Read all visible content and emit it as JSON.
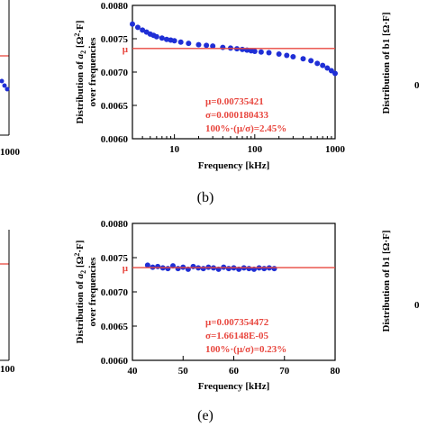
{
  "colors": {
    "series": "#1f2fd6",
    "mean_line": "#e8473f",
    "stat_text": "#e8473f",
    "axis": "#000000"
  },
  "panels": {
    "b": {
      "label": "(b)"
    },
    "e": {
      "label": "(e)"
    }
  },
  "left_fragments": {
    "top_tick": "1000",
    "bottom_tick": "100"
  },
  "right_fragments": {
    "top_ylabel": "Distribution of b1 [Ω·F]",
    "bottom_ylabel": "Distribution of b1 [Ω·F]",
    "top_tick": "0",
    "bottom_tick": "0"
  },
  "chart_data": [
    {
      "id": "b",
      "type": "scatter",
      "title": "",
      "xlabel": "Frequency [kHz]",
      "ylabel_prefix": "Distribution of ",
      "ylabel_var": "a",
      "ylabel_sub": "2",
      "ylabel_unit_open": " [Ω",
      "ylabel_unit_sup": "2",
      "ylabel_unit_close": "·F]",
      "ylabel_line2": "over frequencies",
      "xscale": "log",
      "xlim": [
        3,
        1000
      ],
      "ylim": [
        0.006,
        0.008
      ],
      "xticks": [
        10,
        100,
        1000
      ],
      "xtick_labels": [
        "10",
        "100",
        "1000"
      ],
      "yticks": [
        0.006,
        0.0065,
        0.007,
        0.0075,
        0.008
      ],
      "ytick_labels": [
        "0.0060",
        "0.0065",
        "0.0070",
        "0.0075",
        "0.0080"
      ],
      "mean": 0.00735421,
      "mean_label": "μ",
      "stats": [
        "μ=0.00735421",
        "σ=0.000180433",
        "100%·(μ/σ)=2.45%"
      ],
      "series": [
        {
          "x": [
            3,
            3.5,
            4,
            4.5,
            5,
            5.5,
            6,
            7,
            8,
            9,
            10,
            12,
            15,
            20,
            25,
            30,
            40,
            50,
            60,
            70,
            80,
            90,
            100,
            120,
            150,
            200,
            250,
            300,
            400,
            500,
            600,
            700,
            800,
            900,
            1000
          ],
          "y": [
            0.00772,
            0.00767,
            0.00763,
            0.0076,
            0.00757,
            0.00755,
            0.00753,
            0.00751,
            0.00749,
            0.00748,
            0.00747,
            0.00745,
            0.00743,
            0.00741,
            0.0074,
            0.00739,
            0.00737,
            0.00736,
            0.00735,
            0.00734,
            0.00733,
            0.00732,
            0.00731,
            0.0073,
            0.00729,
            0.00727,
            0.00725,
            0.00723,
            0.0072,
            0.00717,
            0.00713,
            0.0071,
            0.00706,
            0.00702,
            0.00698
          ]
        }
      ],
      "legend": "none",
      "grid": false
    },
    {
      "id": "e",
      "type": "scatter",
      "title": "",
      "xlabel": "Frequency [kHz]",
      "ylabel_prefix": "Distribution of ",
      "ylabel_var": "a",
      "ylabel_sub": "2",
      "ylabel_unit_open": " [Ω",
      "ylabel_unit_sup": "2",
      "ylabel_unit_close": "·F]",
      "ylabel_line2": "over frequencies",
      "xscale": "linear",
      "xlim": [
        40,
        80
      ],
      "ylim": [
        0.006,
        0.008
      ],
      "xticks": [
        40,
        50,
        60,
        70,
        80
      ],
      "xtick_labels": [
        "40",
        "50",
        "60",
        "70",
        "80"
      ],
      "yticks": [
        0.006,
        0.0065,
        0.007,
        0.0075,
        0.008
      ],
      "ytick_labels": [
        "0.0060",
        "0.0065",
        "0.0070",
        "0.0075",
        "0.0080"
      ],
      "mean": 0.007354472,
      "mean_label": "μ",
      "stats": [
        "μ=0.007354472",
        "σ=1.66148E-05",
        "100%·(μ/σ)=0.23%"
      ],
      "series": [
        {
          "x": [
            43,
            44,
            45,
            46,
            47,
            48,
            49,
            50,
            51,
            52,
            53,
            54,
            55,
            56,
            57,
            58,
            59,
            60,
            61,
            62,
            63,
            64,
            65,
            66,
            67,
            68
          ],
          "y": [
            0.00739,
            0.00736,
            0.00737,
            0.00735,
            0.00734,
            0.00738,
            0.00734,
            0.00736,
            0.00733,
            0.00737,
            0.00735,
            0.00734,
            0.00736,
            0.00735,
            0.00733,
            0.00736,
            0.00734,
            0.00735,
            0.00733,
            0.00735,
            0.00734,
            0.00733,
            0.00735,
            0.00734,
            0.00735,
            0.00734
          ]
        }
      ],
      "legend": "none",
      "grid": false
    }
  ]
}
